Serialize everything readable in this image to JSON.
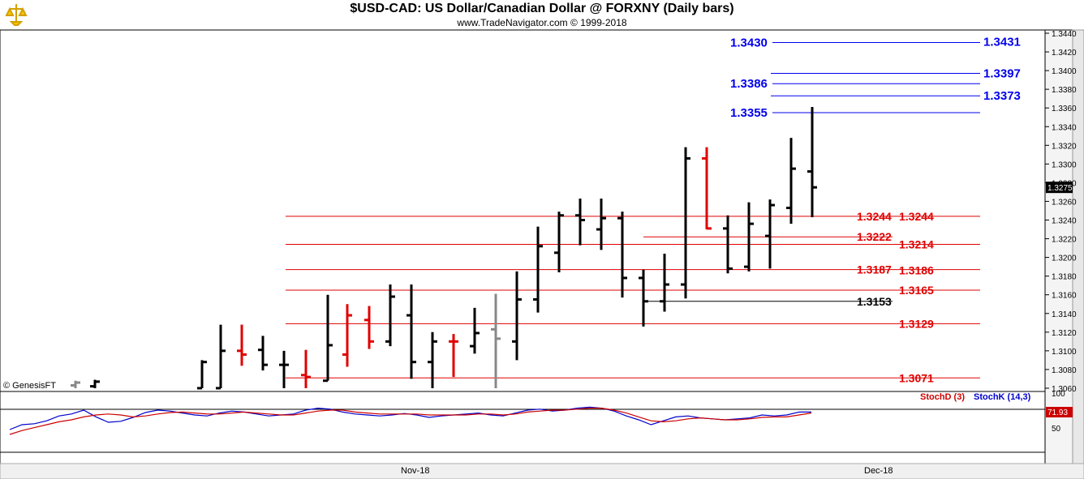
{
  "header": {
    "title": "$USD-CAD:  US Dollar/Canadian Dollar @ FORXNY  (Daily bars)",
    "subtitle": "www.TradeNavigator.com © 1999-2018"
  },
  "watermark": "© GenesisFT",
  "colors": {
    "up": "#000000",
    "down": "#e00000",
    "neutral": "#888888",
    "blue": "#0000ee",
    "red": "#e00000",
    "stochK": "#0000cc",
    "stochD": "#cc0000"
  },
  "chart_data": [
    {
      "type": "ohlc",
      "ylim": [
        1.306,
        1.344
      ],
      "yticks": [
        "1.3440",
        "1.3420",
        "1.3400",
        "1.3380",
        "1.3360",
        "1.3340",
        "1.3320",
        "1.3300",
        "1.3280",
        "1.3260",
        "1.3240",
        "1.3220",
        "1.3200",
        "1.3180",
        "1.3160",
        "1.3140",
        "1.3120",
        "1.3100",
        "1.3080",
        "1.3060"
      ],
      "x_labels": [
        "Nov-18",
        "Dec-18"
      ],
      "last_price": "1.3275",
      "bars": [
        {
          "o": 1.3063,
          "h": 1.3068,
          "l": 1.306,
          "c": 1.3066,
          "color": "neutral"
        },
        {
          "o": 1.3062,
          "h": 1.3069,
          "l": 1.306,
          "c": 1.3067,
          "color": "up"
        },
        {
          "o": 1.306,
          "h": 1.309,
          "l": 1.306,
          "c": 1.3088,
          "color": "up"
        },
        {
          "o": 1.306,
          "h": 1.3128,
          "l": 1.306,
          "c": 1.31,
          "color": "up"
        },
        {
          "o": 1.31,
          "h": 1.3128,
          "l": 1.3084,
          "c": 1.3096,
          "color": "down"
        },
        {
          "o": 1.3101,
          "h": 1.3116,
          "l": 1.3079,
          "c": 1.3085,
          "color": "up"
        },
        {
          "o": 1.3085,
          "h": 1.31,
          "l": 1.306,
          "c": 1.3085,
          "color": "up"
        },
        {
          "o": 1.3074,
          "h": 1.3101,
          "l": 1.306,
          "c": 1.3072,
          "color": "down"
        },
        {
          "o": 1.3068,
          "h": 1.316,
          "l": 1.3068,
          "c": 1.3106,
          "color": "up"
        },
        {
          "o": 1.3096,
          "h": 1.315,
          "l": 1.3083,
          "c": 1.3138,
          "color": "down"
        },
        {
          "o": 1.3133,
          "h": 1.3148,
          "l": 1.3102,
          "c": 1.311,
          "color": "down"
        },
        {
          "o": 1.311,
          "h": 1.3171,
          "l": 1.3105,
          "c": 1.3158,
          "color": "up"
        },
        {
          "o": 1.3138,
          "h": 1.3171,
          "l": 1.307,
          "c": 1.3088,
          "color": "up"
        },
        {
          "o": 1.3088,
          "h": 1.312,
          "l": 1.306,
          "c": 1.311,
          "color": "up"
        },
        {
          "o": 1.311,
          "h": 1.3118,
          "l": 1.3072,
          "c": 1.311,
          "color": "down"
        },
        {
          "o": 1.3105,
          "h": 1.3146,
          "l": 1.3097,
          "c": 1.3119,
          "color": "up"
        },
        {
          "o": 1.3123,
          "h": 1.3161,
          "l": 1.306,
          "c": 1.3113,
          "color": "neutral"
        },
        {
          "o": 1.311,
          "h": 1.3185,
          "l": 1.309,
          "c": 1.3155,
          "color": "up"
        },
        {
          "o": 1.3155,
          "h": 1.3233,
          "l": 1.3141,
          "c": 1.3212,
          "color": "up"
        },
        {
          "o": 1.3205,
          "h": 1.3249,
          "l": 1.3184,
          "c": 1.3245,
          "color": "up"
        },
        {
          "o": 1.3245,
          "h": 1.3263,
          "l": 1.3213,
          "c": 1.324,
          "color": "up"
        },
        {
          "o": 1.323,
          "h": 1.3263,
          "l": 1.3208,
          "c": 1.3242,
          "color": "up"
        },
        {
          "o": 1.3242,
          "h": 1.3249,
          "l": 1.3157,
          "c": 1.3178,
          "color": "up"
        },
        {
          "o": 1.3178,
          "h": 1.3187,
          "l": 1.3126,
          "c": 1.3153,
          "color": "up"
        },
        {
          "o": 1.3153,
          "h": 1.3204,
          "l": 1.3142,
          "c": 1.3171,
          "color": "up"
        },
        {
          "o": 1.3171,
          "h": 1.3318,
          "l": 1.3156,
          "c": 1.3306,
          "color": "up"
        },
        {
          "o": 1.3306,
          "h": 1.3318,
          "l": 1.323,
          "c": 1.3231,
          "color": "down"
        },
        {
          "o": 1.3231,
          "h": 1.3245,
          "l": 1.3183,
          "c": 1.3188,
          "color": "up"
        },
        {
          "o": 1.319,
          "h": 1.3259,
          "l": 1.3185,
          "c": 1.3236,
          "color": "up"
        },
        {
          "o": 1.3223,
          "h": 1.3262,
          "l": 1.3188,
          "c": 1.3256,
          "color": "up"
        },
        {
          "o": 1.3253,
          "h": 1.3328,
          "l": 1.3236,
          "c": 1.3295,
          "color": "up"
        },
        {
          "o": 1.3292,
          "h": 1.3361,
          "l": 1.3243,
          "c": 1.3275,
          "color": "up"
        }
      ],
      "levels": [
        {
          "label": "1.3430",
          "value": 1.343,
          "color": "blue",
          "side": "left"
        },
        {
          "label": "1.3431",
          "value": 1.3431,
          "color": "blue",
          "side": "right"
        },
        {
          "label": "1.3397",
          "value": 1.3397,
          "color": "blue",
          "side": "right"
        },
        {
          "label": "1.3386",
          "value": 1.3386,
          "color": "blue",
          "side": "left"
        },
        {
          "label": "1.3373",
          "value": 1.3373,
          "color": "blue",
          "side": "right"
        },
        {
          "label": "1.3355",
          "value": 1.3355,
          "color": "blue",
          "side": "left"
        },
        {
          "label": "1.3244",
          "value": 1.3244,
          "color": "red",
          "side": "left"
        },
        {
          "label": "1.3244",
          "value": 1.3244,
          "color": "red",
          "side": "right"
        },
        {
          "label": "1.3222",
          "value": 1.3222,
          "color": "red",
          "side": "left"
        },
        {
          "label": "1.3214",
          "value": 1.3214,
          "color": "red",
          "side": "right"
        },
        {
          "label": "1.3187",
          "value": 1.3187,
          "color": "red",
          "side": "left"
        },
        {
          "label": "1.3186",
          "value": 1.3186,
          "color": "red",
          "side": "right"
        },
        {
          "label": "1.3165",
          "value": 1.3165,
          "color": "red",
          "side": "right"
        },
        {
          "label": "1.3153",
          "value": 1.3153,
          "color": "black",
          "side": "left"
        },
        {
          "label": "1.3129",
          "value": 1.3129,
          "color": "red",
          "side": "right"
        },
        {
          "label": "1.3071",
          "value": 1.3071,
          "color": "red",
          "side": "right"
        }
      ]
    },
    {
      "type": "line",
      "ylim": [
        0,
        100
      ],
      "yticks": [
        "100",
        "50"
      ],
      "last_value": "71.93",
      "legend": [
        "StochD (3)",
        "StochK (14,3)"
      ],
      "series": [
        {
          "name": "StochK (14,3)",
          "color": "stochK",
          "values": [
            30,
            40,
            42,
            48,
            58,
            62,
            70,
            56,
            45,
            47,
            55,
            65,
            70,
            68,
            64,
            60,
            58,
            64,
            68,
            66,
            62,
            58,
            60,
            62,
            70,
            74,
            72,
            66,
            62,
            60,
            58,
            60,
            63,
            60,
            55,
            58,
            60,
            62,
            64,
            60,
            58,
            64,
            70,
            72,
            68,
            70,
            74,
            76,
            74,
            68,
            58,
            50,
            40,
            48,
            56,
            58,
            54,
            52,
            50,
            52,
            54,
            60,
            58,
            60,
            66,
            66
          ]
        },
        {
          "name": "StochD (3)",
          "color": "stochD",
          "values": [
            20,
            28,
            34,
            40,
            46,
            50,
            56,
            60,
            62,
            60,
            56,
            58,
            62,
            65,
            66,
            64,
            62,
            62,
            64,
            66,
            64,
            62,
            60,
            60,
            64,
            68,
            70,
            70,
            66,
            64,
            62,
            62,
            62,
            62,
            60,
            60,
            60,
            60,
            62,
            62,
            60,
            62,
            66,
            68,
            70,
            70,
            72,
            74,
            74,
            70,
            64,
            56,
            48,
            46,
            48,
            52,
            54,
            52,
            50,
            50,
            52,
            55,
            56,
            56,
            60,
            64
          ]
        }
      ]
    }
  ]
}
